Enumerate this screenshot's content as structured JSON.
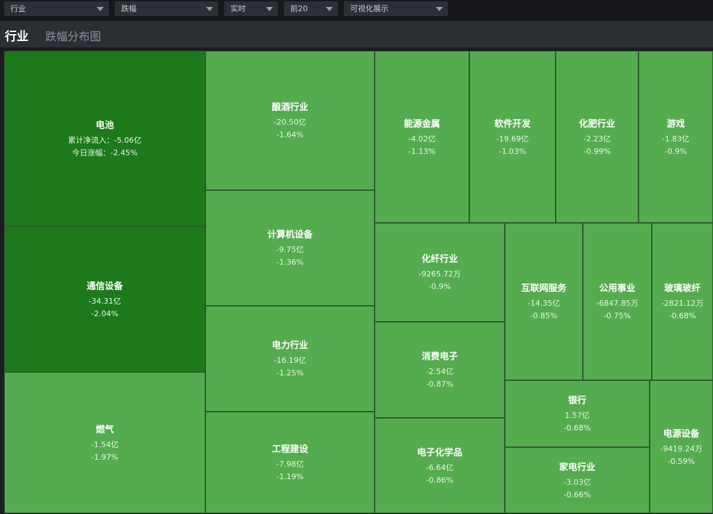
{
  "toolbar": {
    "dropdowns": [
      {
        "value": "行业"
      },
      {
        "value": "跌幅"
      },
      {
        "value": "实时"
      },
      {
        "value": "前20"
      },
      {
        "value": "可视化展示"
      }
    ]
  },
  "header": {
    "title": "行业",
    "subtitle": "跌幅分布图"
  },
  "colors": {
    "strong_decline": "#1c7a1a",
    "decline": "#55ac4f",
    "background": "#1a1c20"
  },
  "cells": [
    {
      "name": "电池",
      "flow": "累计净流入：-5.06亿",
      "change": "今日涨幅：-2.45%",
      "level": "dark"
    },
    {
      "name": "通信设备",
      "flow": "-34.31亿",
      "change": "-2.04%",
      "level": "dark"
    },
    {
      "name": "燃气",
      "flow": "-1.54亿",
      "change": "-1.97%",
      "level": "light"
    },
    {
      "name": "酿酒行业",
      "flow": "-20.50亿",
      "change": "-1.64%",
      "level": "light"
    },
    {
      "name": "计算机设备",
      "flow": "-9.75亿",
      "change": "-1.36%",
      "level": "light"
    },
    {
      "name": "电力行业",
      "flow": "-16.19亿",
      "change": "-1.25%",
      "level": "light"
    },
    {
      "name": "工程建设",
      "flow": "-7.98亿",
      "change": "-1.19%",
      "level": "light"
    },
    {
      "name": "能源金属",
      "flow": "-4.02亿",
      "change": "-1.13%",
      "level": "light"
    },
    {
      "name": "软件开发",
      "flow": "-19.69亿",
      "change": "-1.03%",
      "level": "light"
    },
    {
      "name": "化肥行业",
      "flow": "-2.23亿",
      "change": "-0.99%",
      "level": "light"
    },
    {
      "name": "游戏",
      "flow": "-1.83亿",
      "change": "-0.9%",
      "level": "light"
    },
    {
      "name": "化纤行业",
      "flow": "-9265.72万",
      "change": "-0.9%",
      "level": "light"
    },
    {
      "name": "消费电子",
      "flow": "-2.54亿",
      "change": "-0.87%",
      "level": "light"
    },
    {
      "name": "电子化学品",
      "flow": "-6.64亿",
      "change": "-0.86%",
      "level": "light"
    },
    {
      "name": "互联网服务",
      "flow": "-14.35亿",
      "change": "-0.85%",
      "level": "light"
    },
    {
      "name": "公用事业",
      "flow": "-6847.85万",
      "change": "-0.75%",
      "level": "light"
    },
    {
      "name": "玻璃玻纤",
      "flow": "-2821.12万",
      "change": "-0.68%",
      "level": "light"
    },
    {
      "name": "银行",
      "flow": "1.57亿",
      "change": "-0.68%",
      "level": "light"
    },
    {
      "name": "家电行业",
      "flow": "-3.03亿",
      "change": "-0.66%",
      "level": "light"
    },
    {
      "name": "电源设备",
      "flow": "-9419.24万",
      "change": "-0.59%",
      "level": "light"
    }
  ]
}
